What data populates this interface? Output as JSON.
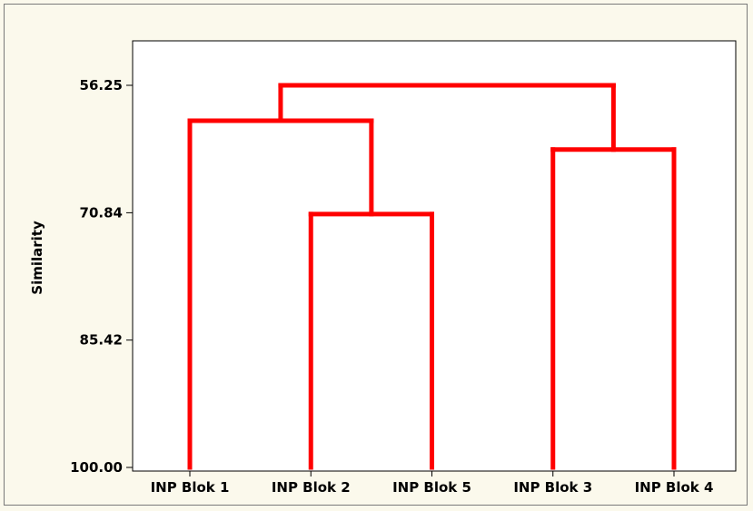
{
  "chart_data": {
    "type": "dendrogram",
    "title": "",
    "xlabel": "",
    "ylabel": "Similarity",
    "yticks": [
      "56.25",
      "70.84",
      "85.42",
      "100.00"
    ],
    "ylim": [
      100.0,
      56.25
    ],
    "y_axis_direction": "similarity decreases upward",
    "leaves": [
      "INP Blok 1",
      "INP Blok 2",
      "INP Blok 5",
      "INP Blok 3",
      "INP Blok 4"
    ],
    "merges": [
      {
        "left": "INP Blok 2",
        "right": "INP Blok 5",
        "similarity": 71.0
      },
      {
        "left": "INP Blok 1",
        "right": "INP Blok 2 + INP Blok 5",
        "similarity": 60.3
      },
      {
        "left": "INP Blok 3",
        "right": "INP Blok 4",
        "similarity": 63.6
      },
      {
        "left": "INP Blok 1 + INP Blok 2 + INP Blok 5",
        "right": "INP Blok 3 + INP Blok 4",
        "similarity": 56.25
      }
    ],
    "grid": false,
    "legend": "none",
    "line_color": "#ff0000"
  }
}
